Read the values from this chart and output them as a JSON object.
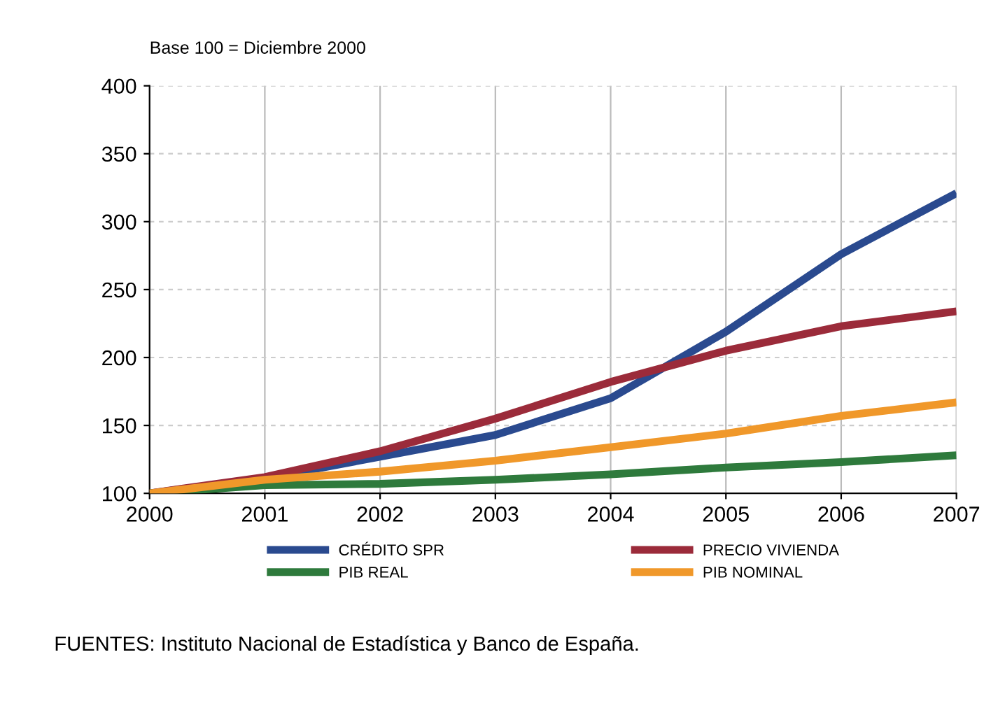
{
  "chart_data": {
    "type": "line",
    "title": "Base 100 = Diciembre 2000",
    "x": [
      2000,
      2001,
      2002,
      2003,
      2004,
      2005,
      2006,
      2007
    ],
    "series": [
      {
        "name": "CRÉDITO SPR",
        "color": "#2a4a8f",
        "values": [
          100,
          111,
          127,
          143,
          170,
          219,
          276,
          321
        ]
      },
      {
        "name": "PRECIO VIVIENDA",
        "color": "#9b2b3a",
        "values": [
          100,
          112,
          131,
          155,
          182,
          205,
          223,
          234
        ]
      },
      {
        "name": "PIB REAL",
        "color": "#2e7a3c",
        "values": [
          100,
          106,
          107,
          110,
          114,
          119,
          123,
          128
        ]
      },
      {
        "name": "PIB NOMINAL",
        "color": "#f0982a",
        "values": [
          100,
          110,
          116,
          124,
          134,
          144,
          157,
          167
        ]
      }
    ],
    "xlim": [
      2000,
      2007
    ],
    "xticks": [
      2000,
      2001,
      2002,
      2003,
      2004,
      2005,
      2006,
      2007
    ],
    "ylim": [
      100,
      400
    ],
    "yticks": [
      100,
      150,
      200,
      250,
      300,
      350,
      400
    ],
    "grid": true,
    "legend": "bottom",
    "marker": "none",
    "line_style": "solid",
    "annotations": [
      "FUENTES: Instituto Nacional de Estadística y Banco de España."
    ]
  }
}
